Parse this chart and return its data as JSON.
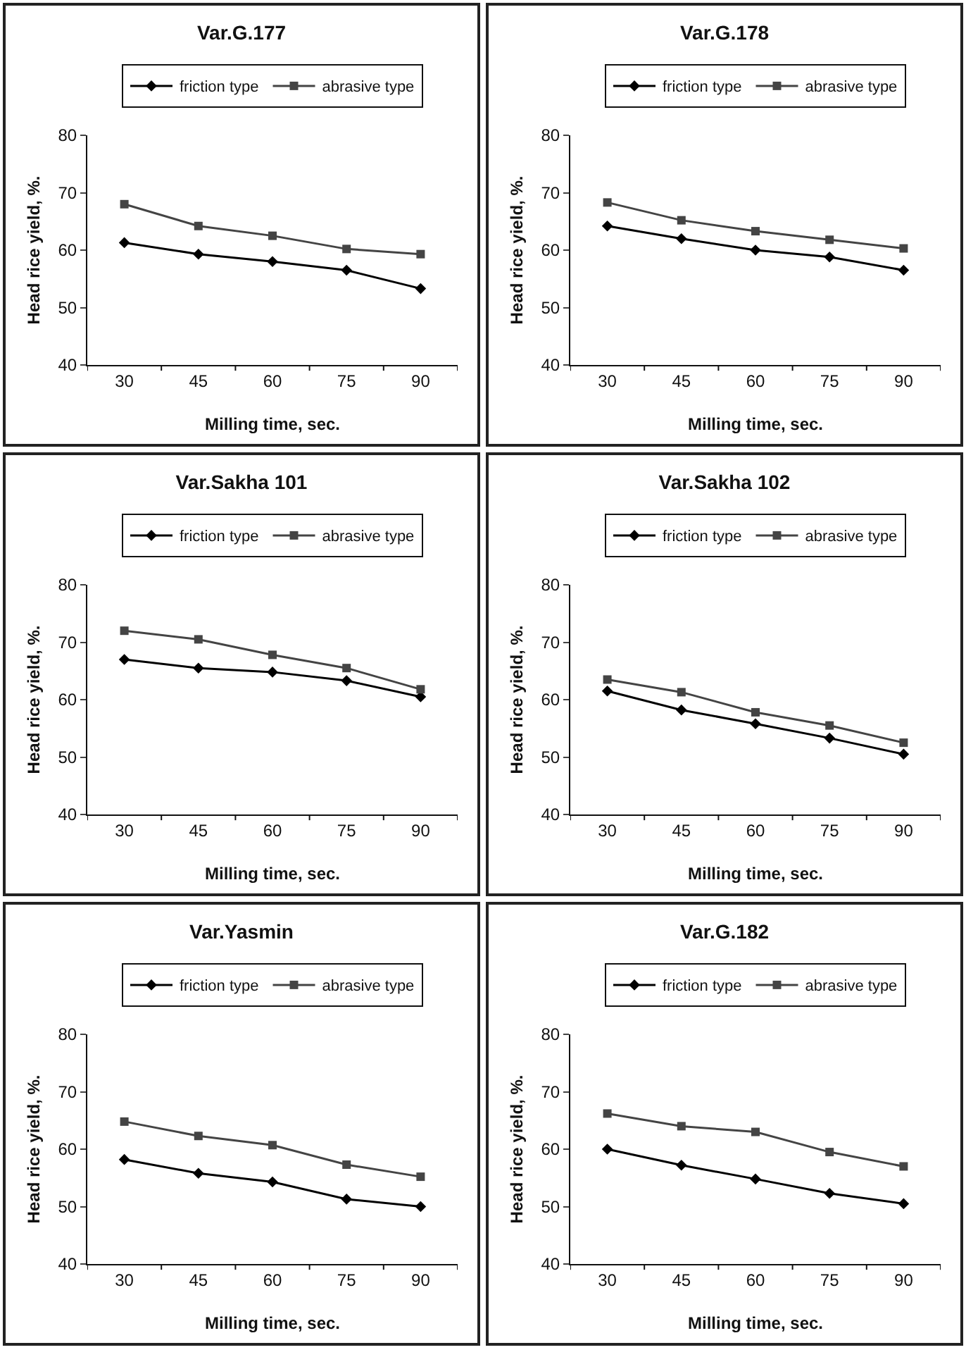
{
  "chart_data": [
    {
      "type": "line",
      "title": "Var.G.177",
      "xlabel": "Milling time, sec.",
      "ylabel": "Head rice yield, %.",
      "categories": [
        "30",
        "45",
        "60",
        "75",
        "90"
      ],
      "ylim": [
        40,
        80
      ],
      "yticks": [
        40,
        50,
        60,
        70,
        80
      ],
      "grid": false,
      "legend": "top",
      "series": [
        {
          "name": "friction type",
          "color": "#000000",
          "marker": "diamond",
          "values": [
            61.3,
            59.3,
            58,
            56.5,
            53.3
          ]
        },
        {
          "name": "abrasive type",
          "color": "#444444",
          "marker": "square",
          "values": [
            68,
            64.2,
            62.5,
            60.2,
            59.3
          ]
        }
      ]
    },
    {
      "type": "line",
      "title": "Var.G.178",
      "xlabel": "Milling time, sec.",
      "ylabel": "Head rice yield, %.",
      "categories": [
        "30",
        "45",
        "60",
        "75",
        "90"
      ],
      "ylim": [
        40,
        80
      ],
      "yticks": [
        40,
        50,
        60,
        70,
        80
      ],
      "grid": false,
      "legend": "top",
      "series": [
        {
          "name": "friction type",
          "color": "#000000",
          "marker": "diamond",
          "values": [
            64.2,
            62,
            60,
            58.8,
            56.5
          ]
        },
        {
          "name": "abrasive type",
          "color": "#444444",
          "marker": "square",
          "values": [
            68.3,
            65.2,
            63.3,
            61.8,
            60.3
          ]
        }
      ]
    },
    {
      "type": "line",
      "title": "Var.Sakha 101",
      "xlabel": "Milling time, sec.",
      "ylabel": "Head rice yield, %.",
      "categories": [
        "30",
        "45",
        "60",
        "75",
        "90"
      ],
      "ylim": [
        40,
        80
      ],
      "yticks": [
        40,
        50,
        60,
        70,
        80
      ],
      "grid": false,
      "legend": "top",
      "series": [
        {
          "name": "friction type",
          "color": "#000000",
          "marker": "diamond",
          "values": [
            67,
            65.5,
            64.8,
            63.3,
            60.5
          ]
        },
        {
          "name": "abrasive type",
          "color": "#444444",
          "marker": "square",
          "values": [
            72,
            70.5,
            67.8,
            65.5,
            61.8
          ]
        }
      ]
    },
    {
      "type": "line",
      "title": "Var.Sakha 102",
      "xlabel": "Milling time, sec.",
      "ylabel": "Head rice yield, %.",
      "categories": [
        "30",
        "45",
        "60",
        "75",
        "90"
      ],
      "ylim": [
        40,
        80
      ],
      "yticks": [
        40,
        50,
        60,
        70,
        80
      ],
      "grid": false,
      "legend": "top",
      "series": [
        {
          "name": "friction type",
          "color": "#000000",
          "marker": "diamond",
          "values": [
            61.5,
            58.2,
            55.8,
            53.3,
            50.5
          ]
        },
        {
          "name": "abrasive type",
          "color": "#444444",
          "marker": "square",
          "values": [
            63.5,
            61.3,
            57.8,
            55.5,
            52.5
          ]
        }
      ]
    },
    {
      "type": "line",
      "title": "Var.Yasmin",
      "xlabel": "Milling time, sec.",
      "ylabel": "Head rice yield, %.",
      "categories": [
        "30",
        "45",
        "60",
        "75",
        "90"
      ],
      "ylim": [
        40,
        80
      ],
      "yticks": [
        40,
        50,
        60,
        70,
        80
      ],
      "grid": false,
      "legend": "top",
      "series": [
        {
          "name": "friction type",
          "color": "#000000",
          "marker": "diamond",
          "values": [
            58.2,
            55.8,
            54.3,
            51.3,
            50
          ]
        },
        {
          "name": "abrasive type",
          "color": "#444444",
          "marker": "square",
          "values": [
            64.8,
            62.3,
            60.7,
            57.3,
            55.2
          ]
        }
      ]
    },
    {
      "type": "line",
      "title": "Var.G.182",
      "xlabel": "Milling time, sec.",
      "ylabel": "Head rice yield, %.",
      "categories": [
        "30",
        "45",
        "60",
        "75",
        "90"
      ],
      "ylim": [
        40,
        80
      ],
      "yticks": [
        40,
        50,
        60,
        70,
        80
      ],
      "grid": false,
      "legend": "top",
      "series": [
        {
          "name": "friction type",
          "color": "#000000",
          "marker": "diamond",
          "values": [
            60,
            57.2,
            54.8,
            52.3,
            50.5
          ]
        },
        {
          "name": "abrasive type",
          "color": "#444444",
          "marker": "square",
          "values": [
            66.2,
            64,
            63,
            59.5,
            57
          ]
        }
      ]
    }
  ]
}
